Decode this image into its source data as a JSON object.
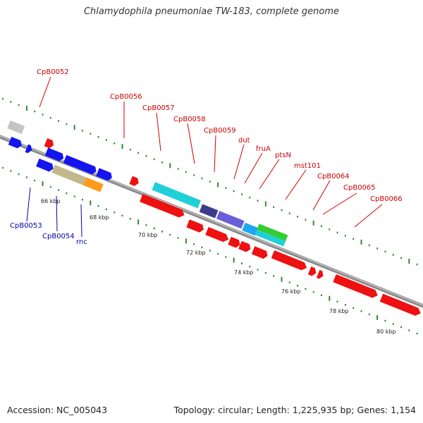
{
  "title": "Chlamydophila pneumoniae TW-183, complete genome",
  "footer": {
    "accession": "Accession: NC_005043",
    "summary": "Topology: circular; Length: 1,225,935 bp; Genes: 1,154"
  },
  "colors": {
    "backbone": "#8a8a8a",
    "tick": "#2e8b2e",
    "forward_label": "#cc0000",
    "reverse_label": "#0000aa"
  },
  "scale_labels": [
    "66 kbp",
    "68 kbp",
    "70 kbp",
    "72 kbp",
    "74 kbp",
    "76 kbp",
    "78 kbp",
    "80 kbp"
  ],
  "gene_labels_top": [
    "CpB0052",
    "CpB0056",
    "CpB0057",
    "CpB0058",
    "CpB0059",
    "dut",
    "fruA",
    "ptsN",
    "mst101",
    "CpB0064",
    "CpB0065",
    "CpB0066"
  ],
  "gene_labels_bottom": [
    "CpB0053",
    "CpB0054",
    "rnc"
  ]
}
